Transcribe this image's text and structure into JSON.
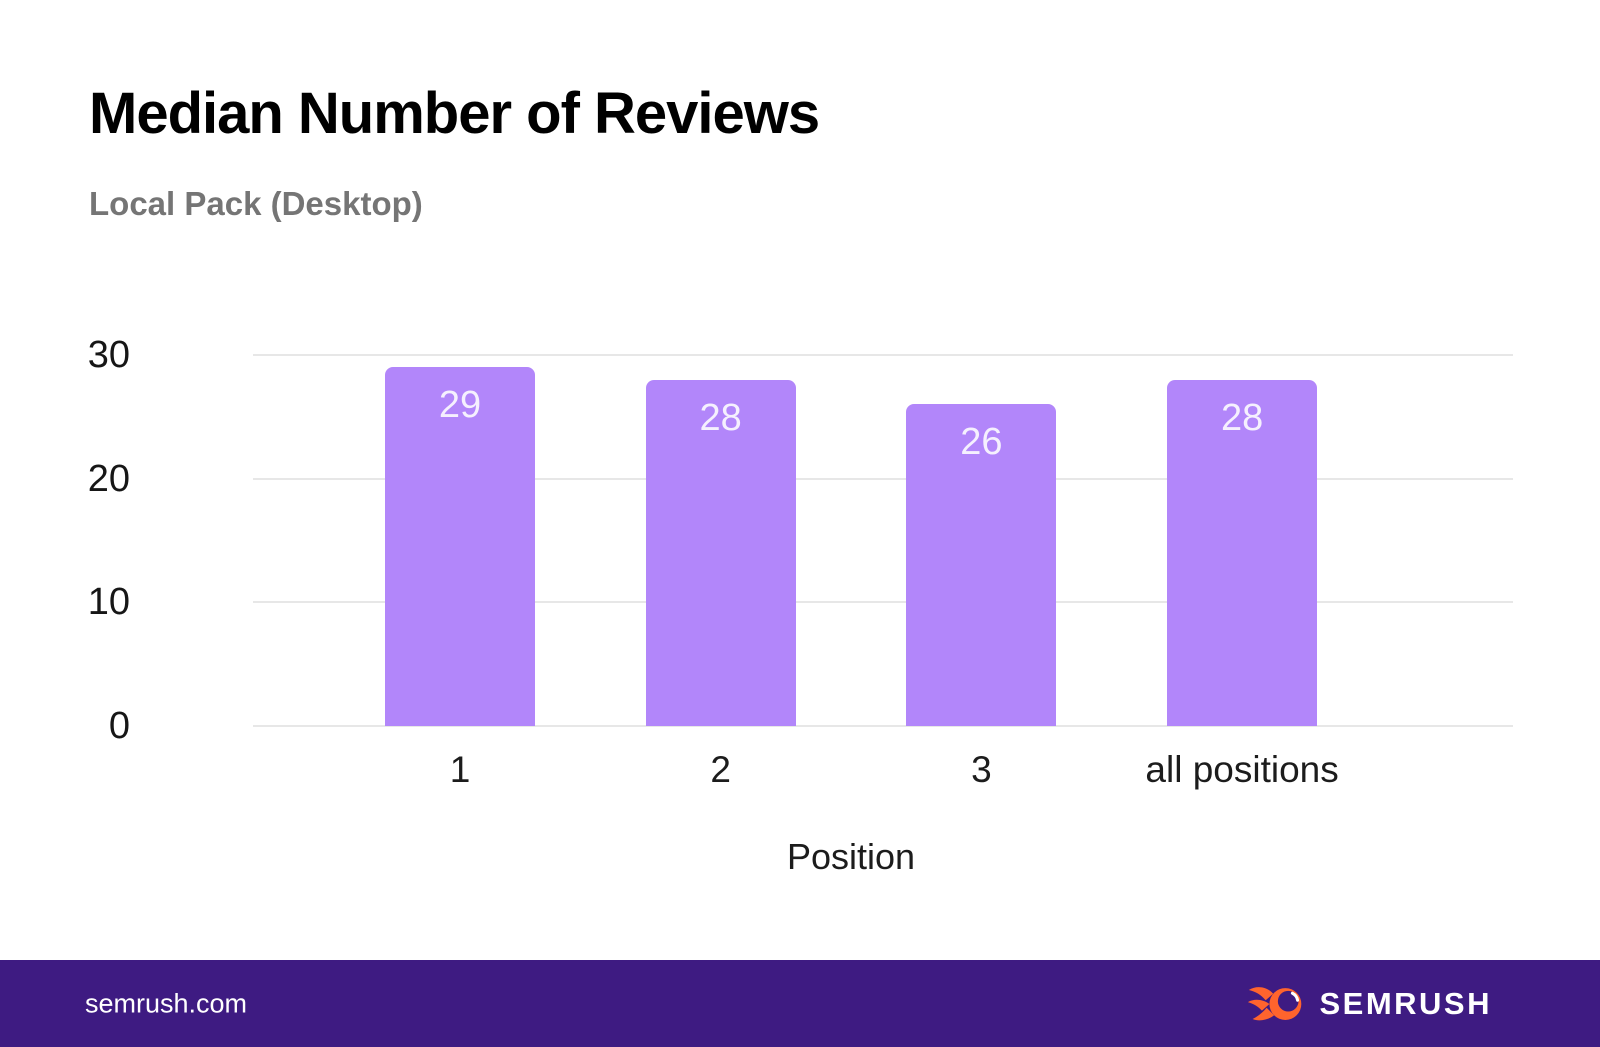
{
  "header": {
    "title": "Median Number of Reviews",
    "subtitle": "Local Pack (Desktop)"
  },
  "chart_data": {
    "type": "bar",
    "categories": [
      "1",
      "2",
      "3",
      "all positions"
    ],
    "values": [
      29,
      28,
      26,
      28
    ],
    "title": "Median Number of Reviews",
    "subtitle": "Local Pack (Desktop)",
    "xlabel": "Position",
    "ylabel": "",
    "ylim": [
      0,
      30
    ],
    "yticks": [
      0,
      10,
      20,
      30
    ],
    "grid": true,
    "legend": "none",
    "bar_color": "#b286fa",
    "value_label_color": "#f5f0fe",
    "gridline_color": "#e7e7e7"
  },
  "footer": {
    "site": "semrush.com",
    "brand": "SEMRUSH",
    "background": "#3e1b82",
    "logo_icon": "semrush-flame-icon",
    "logo_color": "#ff642d"
  }
}
